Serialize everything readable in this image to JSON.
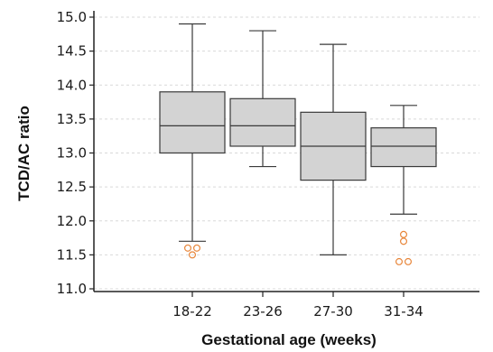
{
  "chart_data": {
    "type": "box",
    "xlabel": "Gestational age (weeks)",
    "ylabel": "TCD/AC ratio",
    "ylim": [
      11.0,
      15.0
    ],
    "yticks": [
      "11.0",
      "11.5",
      "12.0",
      "12.5",
      "13.0",
      "13.5",
      "14.0",
      "14.5",
      "15.0"
    ],
    "grid": "horizontal-dashed",
    "categories": [
      "18-22",
      "23-26",
      "27-30",
      "31-34"
    ],
    "boxes": [
      {
        "category": "18-22",
        "min": 11.7,
        "q1": 13.0,
        "median": 13.4,
        "q3": 13.9,
        "max": 14.9,
        "outliers": [
          [
            -1,
            11.6
          ],
          [
            1,
            11.6
          ],
          [
            0,
            11.5
          ]
        ]
      },
      {
        "category": "23-26",
        "min": 12.8,
        "q1": 13.1,
        "median": 13.4,
        "q3": 13.8,
        "max": 14.8,
        "outliers": []
      },
      {
        "category": "27-30",
        "min": 11.5,
        "q1": 12.6,
        "median": 13.1,
        "q3": 13.6,
        "max": 14.6,
        "outliers": []
      },
      {
        "category": "31-34",
        "min": 12.1,
        "q1": 12.8,
        "median": 13.1,
        "q3": 13.37,
        "max": 13.7,
        "outliers": [
          [
            0,
            11.8
          ],
          [
            0,
            11.7
          ],
          [
            -1,
            11.4
          ],
          [
            1,
            11.4
          ]
        ]
      }
    ],
    "colors": {
      "box_fill": "#d3d3d3",
      "box_stroke": "#3a3a3a",
      "outlier": "#e8863a",
      "grid": "#d9d9d9",
      "axis": "#222222"
    }
  }
}
